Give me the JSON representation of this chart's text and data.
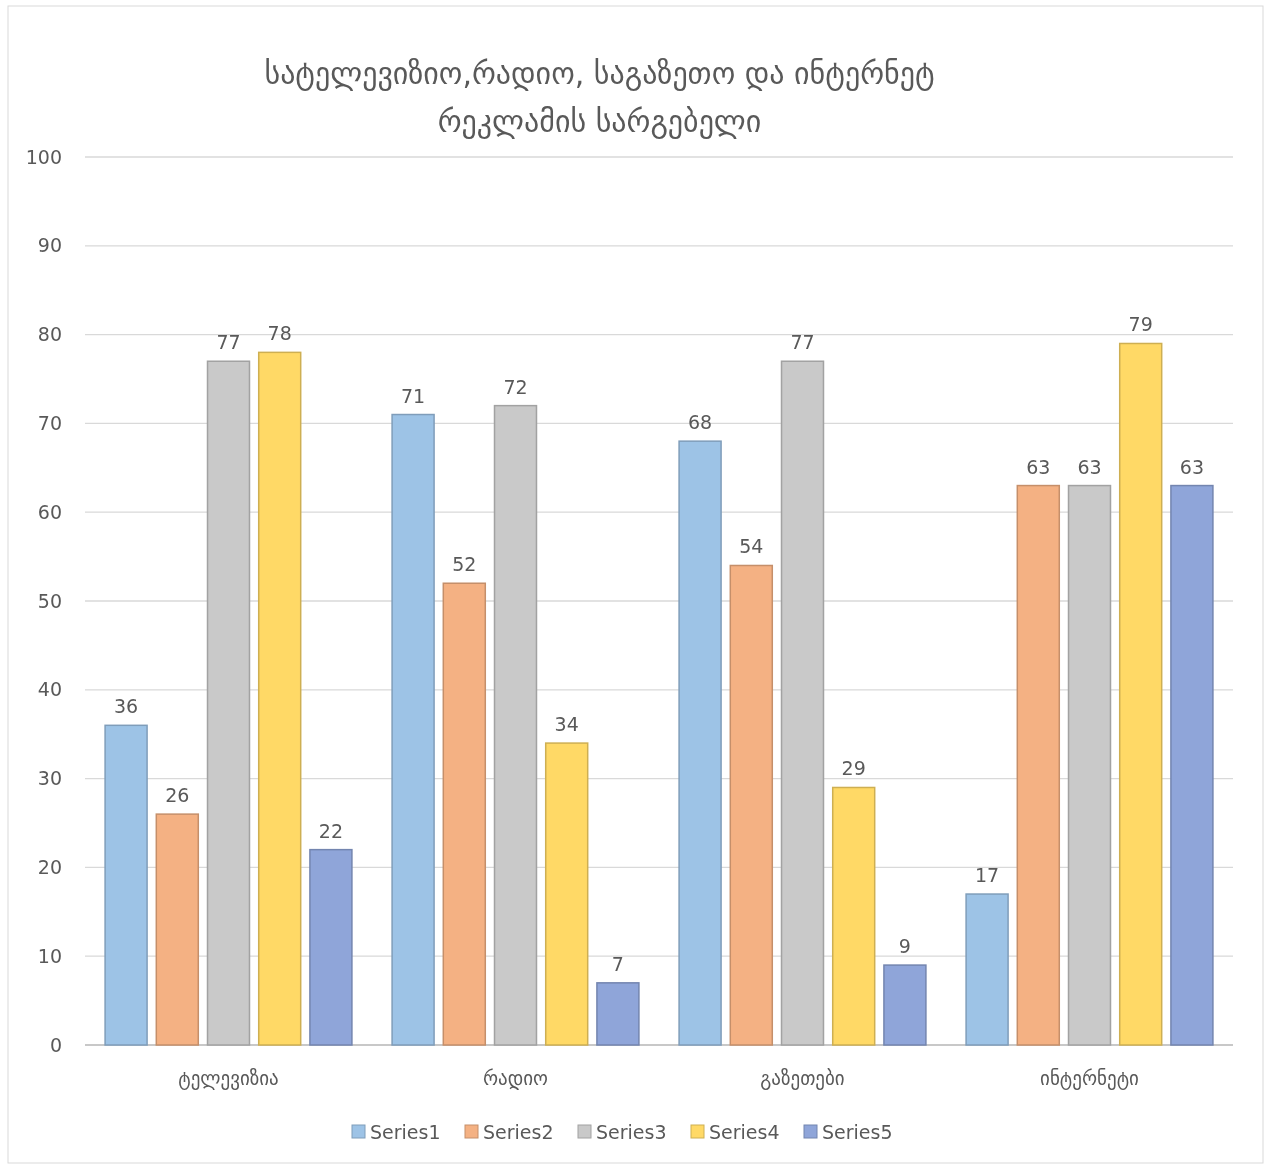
{
  "chart_data": {
    "type": "bar",
    "title": "სატელევიზიო,რადიო, საგაზეთო და ინტერნეტ\nრეკლამის სარგებელი",
    "categories": [
      "ტელევიზია",
      "რადიო",
      "გაზეთები",
      "ინტერნეტი"
    ],
    "series": [
      {
        "name": "Series1",
        "color": "#9dc3e6",
        "values": [
          36,
          71,
          68,
          17
        ]
      },
      {
        "name": "Series2",
        "color": "#f4b183",
        "values": [
          26,
          52,
          54,
          63
        ]
      },
      {
        "name": "Series3",
        "color": "#c9c9c9",
        "values": [
          77,
          72,
          77,
          63
        ]
      },
      {
        "name": "Series4",
        "color": "#ffd966",
        "values": [
          78,
          34,
          29,
          79
        ]
      },
      {
        "name": "Series5",
        "color": "#8fa5d9",
        "values": [
          22,
          7,
          9,
          63
        ]
      }
    ],
    "ylim": [
      0,
      100
    ],
    "yticks": [
      0,
      10,
      20,
      30,
      40,
      50,
      60,
      70,
      80,
      90,
      100
    ],
    "grid": "y",
    "legend": "bottom",
    "data_labels": true
  }
}
